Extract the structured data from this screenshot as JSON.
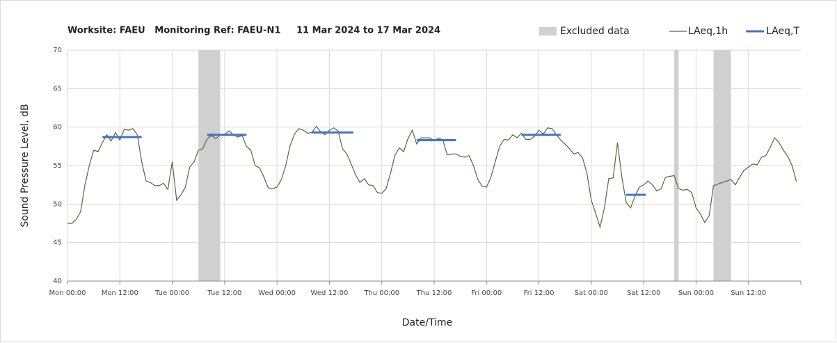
{
  "chart_data": {
    "type": "line",
    "title": "Worksite: FAEU   Monitoring Ref: FAEU-N1     11 Mar 2024 to 17 Mar 2024",
    "xlabel": "Date/Time",
    "ylabel": "Sound Pressure Level, dB",
    "xlim": [
      0,
      168
    ],
    "xticks": [
      {
        "value": 0,
        "label": "Mon 00:00"
      },
      {
        "value": 12,
        "label": "Mon 12:00"
      },
      {
        "value": 24,
        "label": "Tue 00:00"
      },
      {
        "value": 36,
        "label": "Tue 12:00"
      },
      {
        "value": 48,
        "label": "Wed 00:00"
      },
      {
        "value": 60,
        "label": "Wed 12:00"
      },
      {
        "value": 72,
        "label": "Thu 00:00"
      },
      {
        "value": 84,
        "label": "Thu 12:00"
      },
      {
        "value": 96,
        "label": "Fri 00:00"
      },
      {
        "value": 108,
        "label": "Fri 12:00"
      },
      {
        "value": 120,
        "label": "Sat 00:00"
      },
      {
        "value": 132,
        "label": "Sat 12:00"
      },
      {
        "value": 144,
        "label": "Sun 00:00"
      },
      {
        "value": 156,
        "label": "Sun 12:00"
      }
    ],
    "ylim": [
      40,
      70
    ],
    "yticks": [
      40,
      45,
      50,
      55,
      60,
      65,
      70
    ],
    "grid": true,
    "legend": "top-right",
    "excluded": {
      "name": "Excluded data",
      "color": "#d0d0d0",
      "ranges": [
        [
          30,
          35
        ],
        [
          139,
          140
        ],
        [
          148,
          152
        ]
      ]
    },
    "series": [
      {
        "name": "LAeq,1h",
        "color": "#4e6b3a",
        "x": [
          0,
          1,
          2,
          3,
          4,
          5,
          6,
          7,
          8,
          9,
          10,
          11,
          12,
          13,
          14,
          15,
          16,
          17,
          18,
          19,
          20,
          21,
          22,
          23,
          24,
          25,
          26,
          27,
          28,
          29,
          30,
          31,
          32,
          33,
          34,
          35,
          36,
          37,
          38,
          39,
          40,
          41,
          42,
          43,
          44,
          45,
          46,
          47,
          48,
          49,
          50,
          51,
          52,
          53,
          54,
          55,
          56,
          57,
          58,
          59,
          60,
          61,
          62,
          63,
          64,
          65,
          66,
          67,
          68,
          69,
          70,
          71,
          72,
          73,
          74,
          75,
          76,
          77,
          78,
          79,
          80,
          81,
          82,
          83,
          84,
          85,
          86,
          87,
          88,
          89,
          90,
          91,
          92,
          93,
          94,
          95,
          96,
          97,
          98,
          99,
          100,
          101,
          102,
          103,
          104,
          105,
          106,
          107,
          108,
          109,
          110,
          111,
          112,
          113,
          114,
          115,
          116,
          117,
          118,
          119,
          120,
          121,
          122,
          123,
          124,
          125,
          126,
          127,
          128,
          129,
          130,
          131,
          132,
          133,
          134,
          135,
          136,
          137,
          138,
          139,
          140,
          141,
          142,
          143,
          144,
          145,
          146,
          147,
          148,
          149,
          150,
          151,
          152,
          153,
          154,
          155,
          156,
          157,
          158,
          159,
          160,
          161,
          162,
          163,
          164,
          165,
          166,
          167
        ],
        "values": [
          47.5,
          47.5,
          48,
          49,
          52.5,
          55,
          57,
          56.8,
          58,
          59,
          58.2,
          59.3,
          58.3,
          59.7,
          59.6,
          59.8,
          59,
          55.5,
          53,
          52.8,
          52.4,
          52.4,
          52.7,
          51.9,
          55.5,
          50.5,
          51.2,
          52.2,
          54.8,
          55.5,
          57,
          57.2,
          58.5,
          58.9,
          58.5,
          59,
          59,
          59.5,
          59,
          58.7,
          58.9,
          57.5,
          57,
          55,
          54.7,
          53.5,
          52.1,
          52,
          52.2,
          53.2,
          55,
          57.6,
          59.1,
          59.8,
          59.6,
          59.2,
          59.3,
          60.1,
          59.4,
          59,
          59.6,
          59.9,
          59.5,
          57.2,
          56.5,
          55.2,
          53.8,
          52.8,
          53.3,
          52.5,
          52.4,
          51.5,
          51.4,
          52,
          54,
          56.3,
          57.3,
          56.8,
          58.5,
          59.6,
          57.8,
          58.6,
          58.6,
          58.6,
          58.2,
          58.6,
          58.3,
          56.4,
          56.5,
          56.5,
          56.2,
          56.1,
          56.3,
          55,
          53.2,
          52.3,
          52.2,
          53.5,
          55.5,
          57.5,
          58.4,
          58.3,
          59,
          58.6,
          59.2,
          58.4,
          58.4,
          58.8,
          59.6,
          59.1,
          59.9,
          59.8,
          59,
          58.3,
          57.8,
          57.2,
          56.5,
          56.7,
          56,
          54,
          50.5,
          48.8,
          47,
          49.5,
          53.3,
          53.4,
          58,
          53.5,
          50.2,
          49.5,
          51,
          52.2,
          52.5,
          53,
          52.5,
          51.7,
          52,
          53.5,
          53.6,
          53.7,
          52,
          51.8,
          51.9,
          51.5,
          49.5,
          48.7,
          47.6,
          48.5,
          52.4,
          52.6,
          52.8,
          53,
          53.2,
          52.5,
          53.5,
          54.4,
          54.8,
          55.2,
          55.1,
          56.1,
          56.3,
          57.4,
          58.6,
          58,
          57,
          56.2,
          55,
          52.9
        ]
      },
      {
        "name": "LAeq,T",
        "color": "#4472c4",
        "starts": [
          8,
          32,
          56,
          80,
          104,
          128
        ],
        "ends": [
          17,
          41,
          65.5,
          89,
          113,
          132.5
        ],
        "values": [
          58.7,
          59,
          59.3,
          58.3,
          59,
          51.2
        ]
      }
    ]
  }
}
